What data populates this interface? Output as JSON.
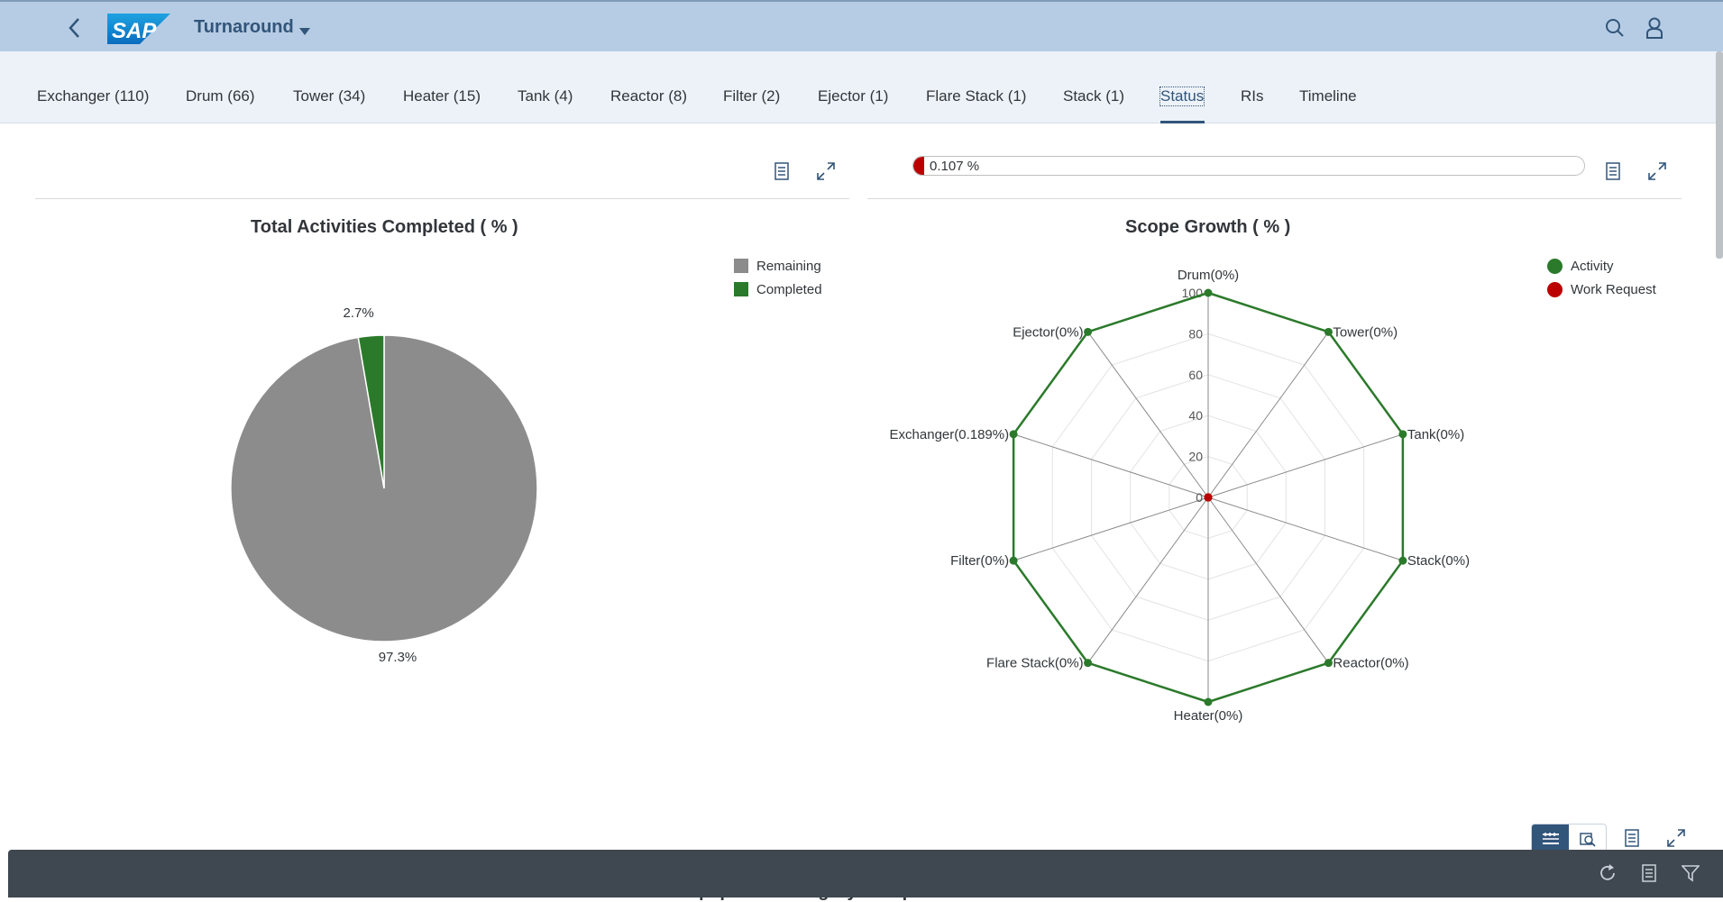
{
  "shell": {
    "app_title": "Turnaround",
    "logo_text": "SAP"
  },
  "tabs": [
    {
      "label": "Exchanger (110)"
    },
    {
      "label": "Drum (66)"
    },
    {
      "label": "Tower (34)"
    },
    {
      "label": "Heater (15)"
    },
    {
      "label": "Tank (4)"
    },
    {
      "label": "Reactor (8)"
    },
    {
      "label": "Filter (2)"
    },
    {
      "label": "Ejector (1)"
    },
    {
      "label": "Flare Stack (1)"
    },
    {
      "label": "Stack (1)"
    },
    {
      "label": "Status",
      "active": true
    },
    {
      "label": "RIs"
    },
    {
      "label": "Timeline"
    }
  ],
  "progress": {
    "label": "0.107 %",
    "value_percent": 0.107,
    "color": "#bb0000"
  },
  "colors": {
    "remaining": "#8c8c8c",
    "completed": "#2b7a2b",
    "activity": "#2b7a2b",
    "work_request": "#bb0000",
    "shell": "#b6cce4",
    "brand": "#32557a"
  },
  "bottom": {
    "peek_title": "Equipment Category Completeness"
  },
  "chart_data": [
    {
      "type": "pie",
      "title": "Total Activities Completed ( % )",
      "legend": [
        "Remaining",
        "Completed"
      ],
      "legend_position": "top-right",
      "slices": [
        {
          "name": "Remaining",
          "value": 97.3,
          "label": "97.3%"
        },
        {
          "name": "Completed",
          "value": 2.7,
          "label": "2.7%"
        }
      ]
    },
    {
      "type": "radar",
      "title": "Scope Growth ( % )",
      "legend": [
        "Activity",
        "Work Request"
      ],
      "legend_position": "top-right",
      "r_range": [
        0,
        100
      ],
      "r_ticks": [
        0,
        20,
        40,
        60,
        80,
        100
      ],
      "categories": [
        "Drum(0%)",
        "Tower(0%)",
        "Tank(0%)",
        "Stack(0%)",
        "Reactor(0%)",
        "Heater(0%)",
        "Flare Stack(0%)",
        "Filter(0%)",
        "Exchanger(0.189%)",
        "Ejector(0%)"
      ],
      "series": [
        {
          "name": "Activity",
          "values": [
            100,
            100,
            100,
            100,
            100,
            100,
            100,
            100,
            100,
            100
          ]
        },
        {
          "name": "Work Request",
          "values": [
            0,
            0,
            0,
            0,
            0,
            0,
            0,
            0,
            0,
            0
          ]
        }
      ]
    }
  ]
}
